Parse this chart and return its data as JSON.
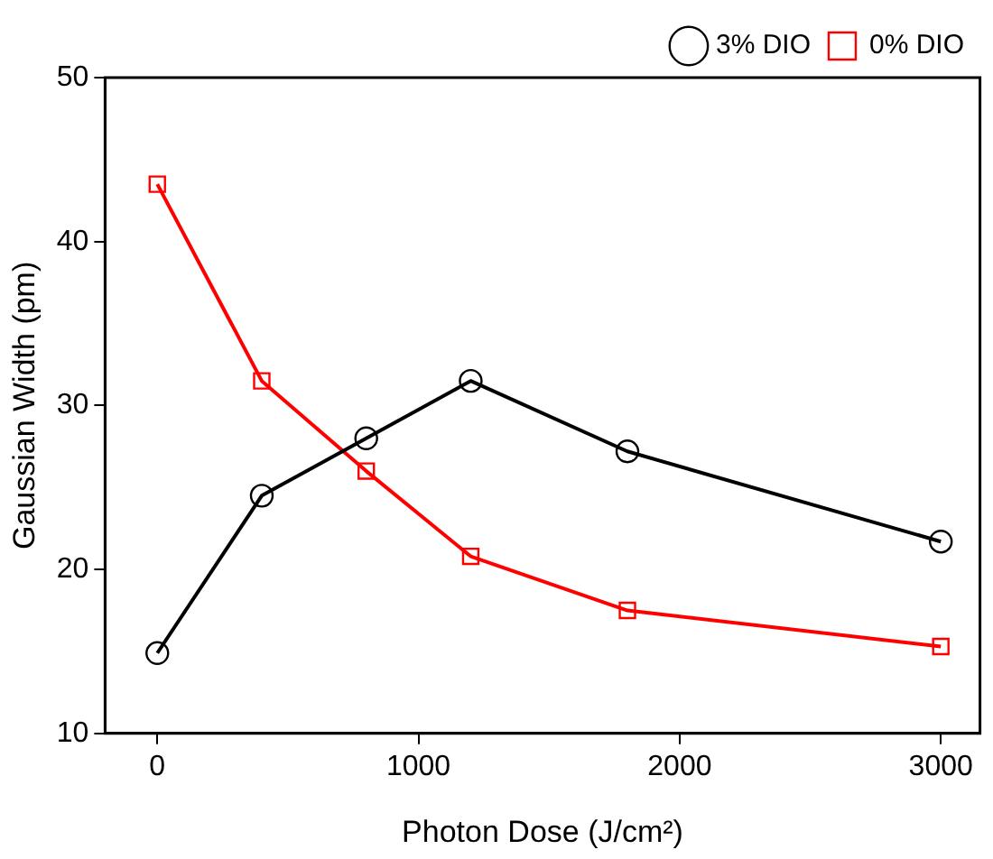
{
  "chart_data": {
    "type": "line",
    "xlabel": "Photon Dose (J/cm²)",
    "ylabel": "Gaussian Width (pm)",
    "x": [
      0,
      400,
      800,
      1200,
      1800,
      3000
    ],
    "series": [
      {
        "name": "3% DIO",
        "color": "#000000",
        "marker": "circle",
        "values": [
          14.9,
          24.5,
          28,
          31.5,
          27.2,
          21.7
        ]
      },
      {
        "name": "0% DIO",
        "color": "#ff0000",
        "marker": "square",
        "values": [
          43.5,
          31.5,
          26,
          20.8,
          17.5,
          15.3
        ]
      }
    ],
    "xlim": [
      -200,
      3150
    ],
    "xticks": [
      0,
      1000,
      2000,
      3000
    ],
    "ylim": [
      10,
      50
    ],
    "yticks": [
      10,
      20,
      30,
      40,
      50
    ],
    "grid": false,
    "legend": "top right",
    "line_style": "solid"
  }
}
